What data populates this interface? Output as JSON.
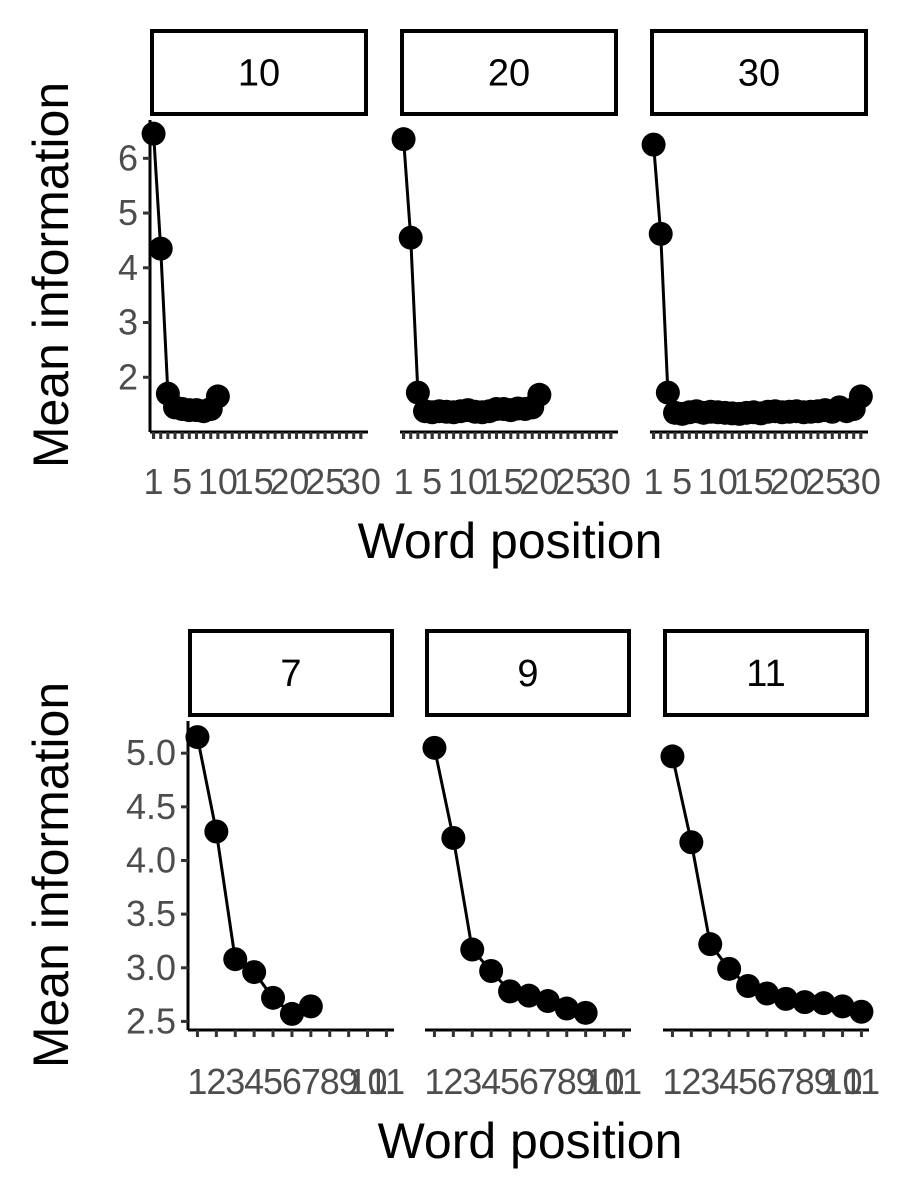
{
  "chart_data": [
    {
      "type": "line",
      "xlabel": "Word position",
      "ylabel": "Mean information",
      "yticks": [
        2,
        3,
        4,
        5,
        6
      ],
      "ylim": [
        1.0,
        6.7
      ],
      "xlim": [
        0.5,
        31
      ],
      "xticks": [
        1,
        5,
        10,
        15,
        20,
        25,
        30
      ],
      "xtick_labels": [
        "1",
        "5",
        "10",
        "15",
        "20",
        "25",
        "30"
      ],
      "minor_xticks": [
        1,
        2,
        3,
        4,
        5,
        6,
        7,
        8,
        9,
        10,
        11,
        12,
        13,
        14,
        15,
        16,
        17,
        18,
        19,
        20,
        21,
        22,
        23,
        24,
        25,
        26,
        27,
        28,
        29,
        30
      ],
      "point_color": "#000000",
      "facets": [
        {
          "label": "10",
          "x": [
            1,
            2,
            3,
            4,
            5,
            6,
            7,
            8,
            9,
            10
          ],
          "y": [
            6.45,
            4.35,
            1.7,
            1.45,
            1.42,
            1.4,
            1.4,
            1.38,
            1.42,
            1.65
          ]
        },
        {
          "label": "20",
          "x": [
            1,
            2,
            3,
            4,
            5,
            6,
            7,
            8,
            9,
            10,
            11,
            12,
            13,
            14,
            15,
            16,
            17,
            18,
            19,
            20
          ],
          "y": [
            6.35,
            4.55,
            1.72,
            1.38,
            1.36,
            1.38,
            1.37,
            1.36,
            1.38,
            1.4,
            1.37,
            1.36,
            1.38,
            1.42,
            1.42,
            1.4,
            1.43,
            1.42,
            1.45,
            1.68
          ]
        },
        {
          "label": "30",
          "x": [
            1,
            2,
            3,
            4,
            5,
            6,
            7,
            8,
            9,
            10,
            11,
            12,
            13,
            14,
            15,
            16,
            17,
            18,
            19,
            20,
            21,
            22,
            23,
            24,
            25,
            26,
            27,
            28,
            29,
            30
          ],
          "y": [
            6.25,
            4.62,
            1.72,
            1.35,
            1.33,
            1.36,
            1.38,
            1.35,
            1.37,
            1.36,
            1.35,
            1.34,
            1.33,
            1.35,
            1.36,
            1.34,
            1.37,
            1.38,
            1.36,
            1.37,
            1.38,
            1.36,
            1.37,
            1.38,
            1.4,
            1.37,
            1.45,
            1.38,
            1.42,
            1.65
          ]
        }
      ]
    },
    {
      "type": "line",
      "xlabel": "Word position",
      "ylabel": "Mean information",
      "yticks": [
        2.5,
        3.0,
        3.5,
        4.0,
        4.5,
        5.0
      ],
      "ytick_labels": [
        "2.5",
        "3.0",
        "3.5",
        "4.0",
        "4.5",
        "5.0"
      ],
      "ylim": [
        2.42,
        5.3
      ],
      "xlim": [
        0.5,
        11.4
      ],
      "xticks": [
        1,
        2,
        3,
        4,
        5,
        6,
        7,
        8,
        9,
        10,
        11
      ],
      "xtick_labels": [
        "1",
        "2",
        "3",
        "4",
        "5",
        "6",
        "7",
        "8",
        "9",
        "10",
        "11"
      ],
      "point_color": "#000000",
      "facets": [
        {
          "label": "7",
          "x": [
            1,
            2,
            3,
            4,
            5,
            6,
            7
          ],
          "y": [
            5.15,
            4.27,
            3.08,
            2.96,
            2.72,
            2.57,
            2.64
          ]
        },
        {
          "label": "9",
          "x": [
            1,
            2,
            3,
            4,
            5,
            6,
            7,
            8,
            9
          ],
          "y": [
            5.05,
            4.21,
            3.17,
            2.97,
            2.78,
            2.74,
            2.69,
            2.62,
            2.58
          ]
        },
        {
          "label": "11",
          "x": [
            1,
            2,
            3,
            4,
            5,
            6,
            7,
            8,
            9,
            10,
            11
          ],
          "y": [
            4.97,
            4.17,
            3.22,
            2.99,
            2.83,
            2.76,
            2.71,
            2.68,
            2.67,
            2.64,
            2.59
          ]
        }
      ]
    }
  ]
}
